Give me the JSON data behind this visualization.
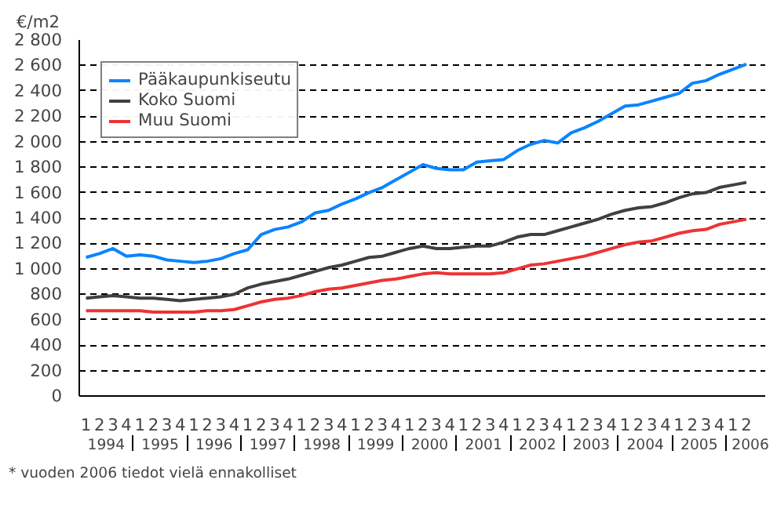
{
  "chart_data": {
    "type": "line",
    "ylabel": "€/m2",
    "categories": [
      "1",
      "2",
      "3",
      "4",
      "1",
      "2",
      "3",
      "4",
      "1",
      "2",
      "3",
      "4",
      "1",
      "2",
      "3",
      "4",
      "1",
      "2",
      "3",
      "4",
      "1",
      "2",
      "3",
      "4",
      "1",
      "2",
      "3",
      "4",
      "1",
      "2",
      "3",
      "4",
      "1",
      "2",
      "3",
      "4",
      "1",
      "2",
      "3",
      "4",
      "1",
      "2",
      "3",
      "4",
      "1",
      "2",
      "3",
      "4",
      "1",
      "2"
    ],
    "series": [
      {
        "name": "Pääkaupunkiseutu",
        "color": "#0a84ff",
        "values": [
          1090,
          1120,
          1160,
          1100,
          1110,
          1100,
          1070,
          1060,
          1050,
          1060,
          1080,
          1120,
          1150,
          1270,
          1310,
          1330,
          1370,
          1440,
          1460,
          1510,
          1550,
          1600,
          1640,
          1700,
          1760,
          1820,
          1790,
          1780,
          1780,
          1840,
          1850,
          1860,
          1930,
          1980,
          2010,
          1990,
          2070,
          2110,
          2160,
          2220,
          2280,
          2290,
          2320,
          2350,
          2380,
          2460,
          2480,
          2530,
          2570,
          2610
        ]
      },
      {
        "name": "Koko Suomi",
        "color": "#404040",
        "values": [
          770,
          780,
          790,
          780,
          770,
          770,
          760,
          750,
          760,
          770,
          780,
          800,
          850,
          880,
          900,
          920,
          950,
          980,
          1010,
          1030,
          1060,
          1090,
          1100,
          1130,
          1160,
          1180,
          1160,
          1160,
          1170,
          1180,
          1180,
          1210,
          1250,
          1270,
          1270,
          1300,
          1330,
          1360,
          1390,
          1430,
          1460,
          1480,
          1490,
          1520,
          1560,
          1590,
          1600,
          1640,
          1660,
          1680
        ]
      },
      {
        "name": "Muu Suomi",
        "color": "#ee3333",
        "values": [
          670,
          670,
          670,
          670,
          670,
          660,
          660,
          660,
          660,
          670,
          670,
          680,
          710,
          740,
          760,
          770,
          790,
          820,
          840,
          850,
          870,
          890,
          910,
          920,
          940,
          960,
          970,
          960,
          960,
          960,
          960,
          970,
          1000,
          1030,
          1040,
          1060,
          1080,
          1100,
          1130,
          1160,
          1190,
          1210,
          1220,
          1250,
          1280,
          1300,
          1310,
          1350,
          1370,
          1390
        ]
      }
    ],
    "ylim": [
      0,
      2800
    ],
    "yticks": [
      0,
      200,
      400,
      600,
      800,
      {
        "value": 1000,
        "label": "1 000"
      },
      {
        "value": 1200,
        "label": "1 200"
      },
      {
        "value": 1400,
        "label": "1 400"
      },
      {
        "value": 1600,
        "label": "1 600"
      },
      {
        "value": 1800,
        "label": "1 800"
      },
      {
        "value": 2000,
        "label": "2 000"
      },
      {
        "value": 2200,
        "label": "2 200"
      },
      {
        "value": 2400,
        "label": "2 400"
      },
      {
        "value": 2600,
        "label": "2 600"
      },
      {
        "value": 2800,
        "label": "2 800"
      }
    ],
    "grid": "y",
    "legend": "top left",
    "line_style": "solid",
    "annotations": [
      "1994",
      "1995",
      "1996",
      "1997",
      "1998",
      "1999",
      "2000",
      "2001",
      "2002",
      "2003",
      "2004",
      "2005",
      "2006",
      "* vuoden 2006 tiedot vielä ennakolliset"
    ]
  }
}
